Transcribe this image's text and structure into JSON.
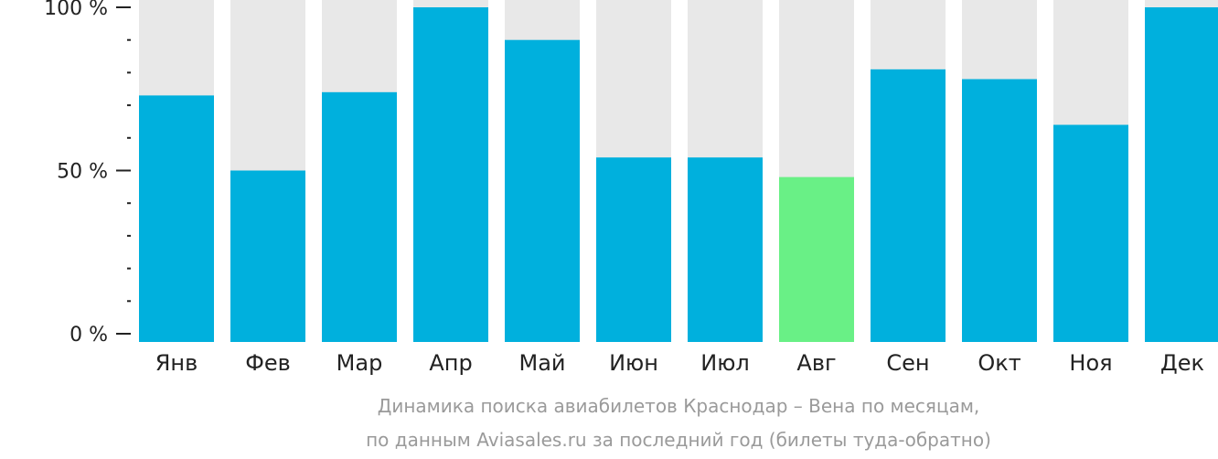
{
  "chart_data": {
    "type": "bar",
    "categories": [
      "Янв",
      "Фев",
      "Мар",
      "Апр",
      "Май",
      "Июн",
      "Июл",
      "Авг",
      "Сен",
      "Окт",
      "Ноя",
      "Дек"
    ],
    "values": [
      73,
      50,
      74,
      100,
      90,
      54,
      54,
      48,
      81,
      78,
      64,
      100
    ],
    "highlight_index": 7,
    "ylim": [
      0,
      100
    ],
    "yticks": [
      "100 %",
      "50 %",
      "0 %"
    ],
    "grid": false,
    "colors": {
      "bar": "#00b0dd",
      "highlight": "#69f086",
      "background_bar": "#e8e8e8",
      "axis": "#222222"
    }
  },
  "caption": {
    "line1": "Динамика поиска авиабилетов Краснодар – Вена по месяцам,",
    "line2": "по данным Aviasales.ru за последний год (билеты туда-обратно)"
  }
}
